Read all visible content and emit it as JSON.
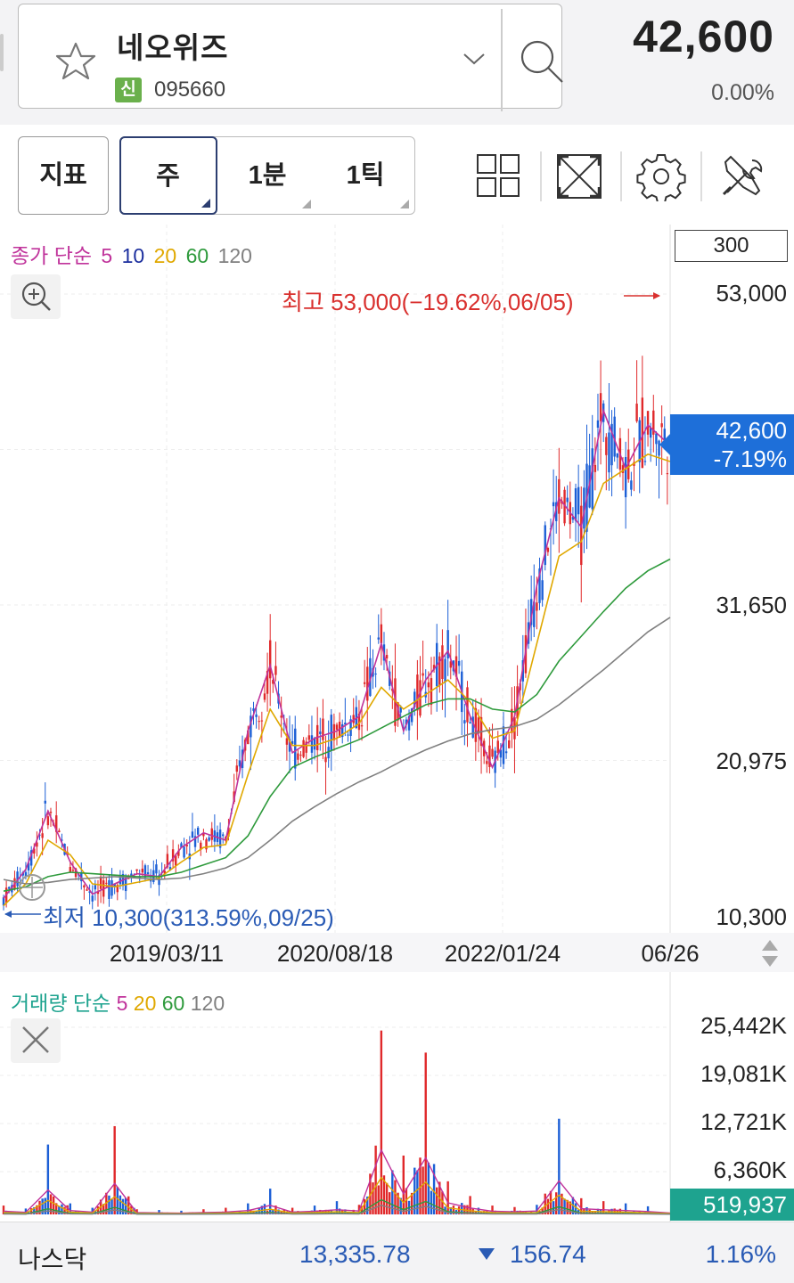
{
  "stock": {
    "name": "네오위즈",
    "market_badge": "신",
    "code": "095660",
    "price": "42,600",
    "change": "0.00%"
  },
  "toolbar": {
    "indicator_label": "지표",
    "periods": [
      "주",
      "1분",
      "1틱"
    ],
    "selected_period": "주"
  },
  "chart": {
    "legend": {
      "title": "종가 단순",
      "ma": [
        "5",
        "10",
        "20",
        "60",
        "120"
      ]
    },
    "ma_colors": {
      "5": "#c0339b",
      "10": "#1c2f9e",
      "20": "#e0a800",
      "60": "#2e9a3c",
      "120": "#808080"
    },
    "count": "300",
    "y_labels": [
      "53,000",
      "31,650",
      "20,975",
      "10,300"
    ],
    "current_price": "42,600",
    "current_change": "-7.19%",
    "high_label": "최고 53,000(−19.62%,06/05)",
    "low_label": "최저 10,300(313.59%,09/25)",
    "x_labels": [
      "2019/03/11",
      "2020/08/18",
      "2022/01/24",
      "06/26"
    ]
  },
  "volume": {
    "legend": {
      "title": "거래량 단순",
      "ma": [
        "5",
        "20",
        "60",
        "120"
      ]
    },
    "y_labels": [
      "25,442K",
      "19,081K",
      "12,721K",
      "6,360K"
    ],
    "current_volume": "519,937"
  },
  "footer": {
    "index_name": "나스닥",
    "index_value": "13,335.78",
    "index_change": "156.74",
    "index_pct": "1.16%"
  },
  "chart_data": {
    "type": "line",
    "ylim": [
      10300,
      53000
    ],
    "x_ticks": [
      "2019/03/11",
      "2020/08/18",
      "2022/01/24",
      "06/26"
    ],
    "series": [
      {
        "name": "5",
        "values": [
          11500,
          13500,
          17500,
          14000,
          11800,
          12500,
          13200,
          13000,
          15000,
          16000,
          15500,
          23000,
          27500,
          21500,
          22500,
          23000,
          24000,
          29000,
          23000,
          26500,
          28500,
          24000,
          20500,
          24000,
          33000,
          39000,
          37000,
          45000,
          41000,
          44000,
          42600
        ]
      },
      {
        "name": "20",
        "values": [
          11000,
          12500,
          15500,
          14500,
          12500,
          12300,
          12600,
          12900,
          14000,
          15000,
          15200,
          20000,
          24500,
          22000,
          22000,
          22500,
          23500,
          26000,
          24500,
          25500,
          26500,
          25000,
          22500,
          23000,
          29000,
          35000,
          36000,
          40000,
          41000,
          42000,
          41500
        ]
      },
      {
        "name": "60",
        "values": [
          12000,
          12300,
          13000,
          13300,
          13200,
          13100,
          13000,
          13000,
          13300,
          13800,
          14300,
          15800,
          18500,
          20500,
          21200,
          21800,
          22400,
          23200,
          24000,
          24800,
          25200,
          25200,
          24500,
          24300,
          25500,
          27800,
          29500,
          31200,
          32800,
          34000,
          34800
        ]
      },
      {
        "name": "120",
        "values": [
          12800,
          12500,
          12600,
          12800,
          12900,
          13000,
          12900,
          12800,
          12900,
          13200,
          13600,
          14300,
          15500,
          16800,
          17800,
          18700,
          19500,
          20200,
          21000,
          21700,
          22300,
          22800,
          23100,
          23300,
          23800,
          24800,
          26000,
          27200,
          28500,
          29800,
          30800
        ]
      }
    ],
    "high": {
      "value": 53000,
      "pct": "−19.62%",
      "date": "06/05"
    },
    "low": {
      "value": 10300,
      "pct": "313.59%",
      "date": "09/25"
    },
    "volume_ylim": [
      0,
      25442000
    ],
    "volume_values": [
      1200,
      800,
      9500,
      1500,
      900,
      12000,
      700,
      600,
      500,
      700,
      900,
      1500,
      3500,
      900,
      1200,
      1800,
      1300,
      25000,
      8000,
      22000,
      4500,
      2500,
      1200,
      1000,
      1300,
      13000,
      2200,
      1800,
      1500,
      1100,
      520
    ]
  }
}
